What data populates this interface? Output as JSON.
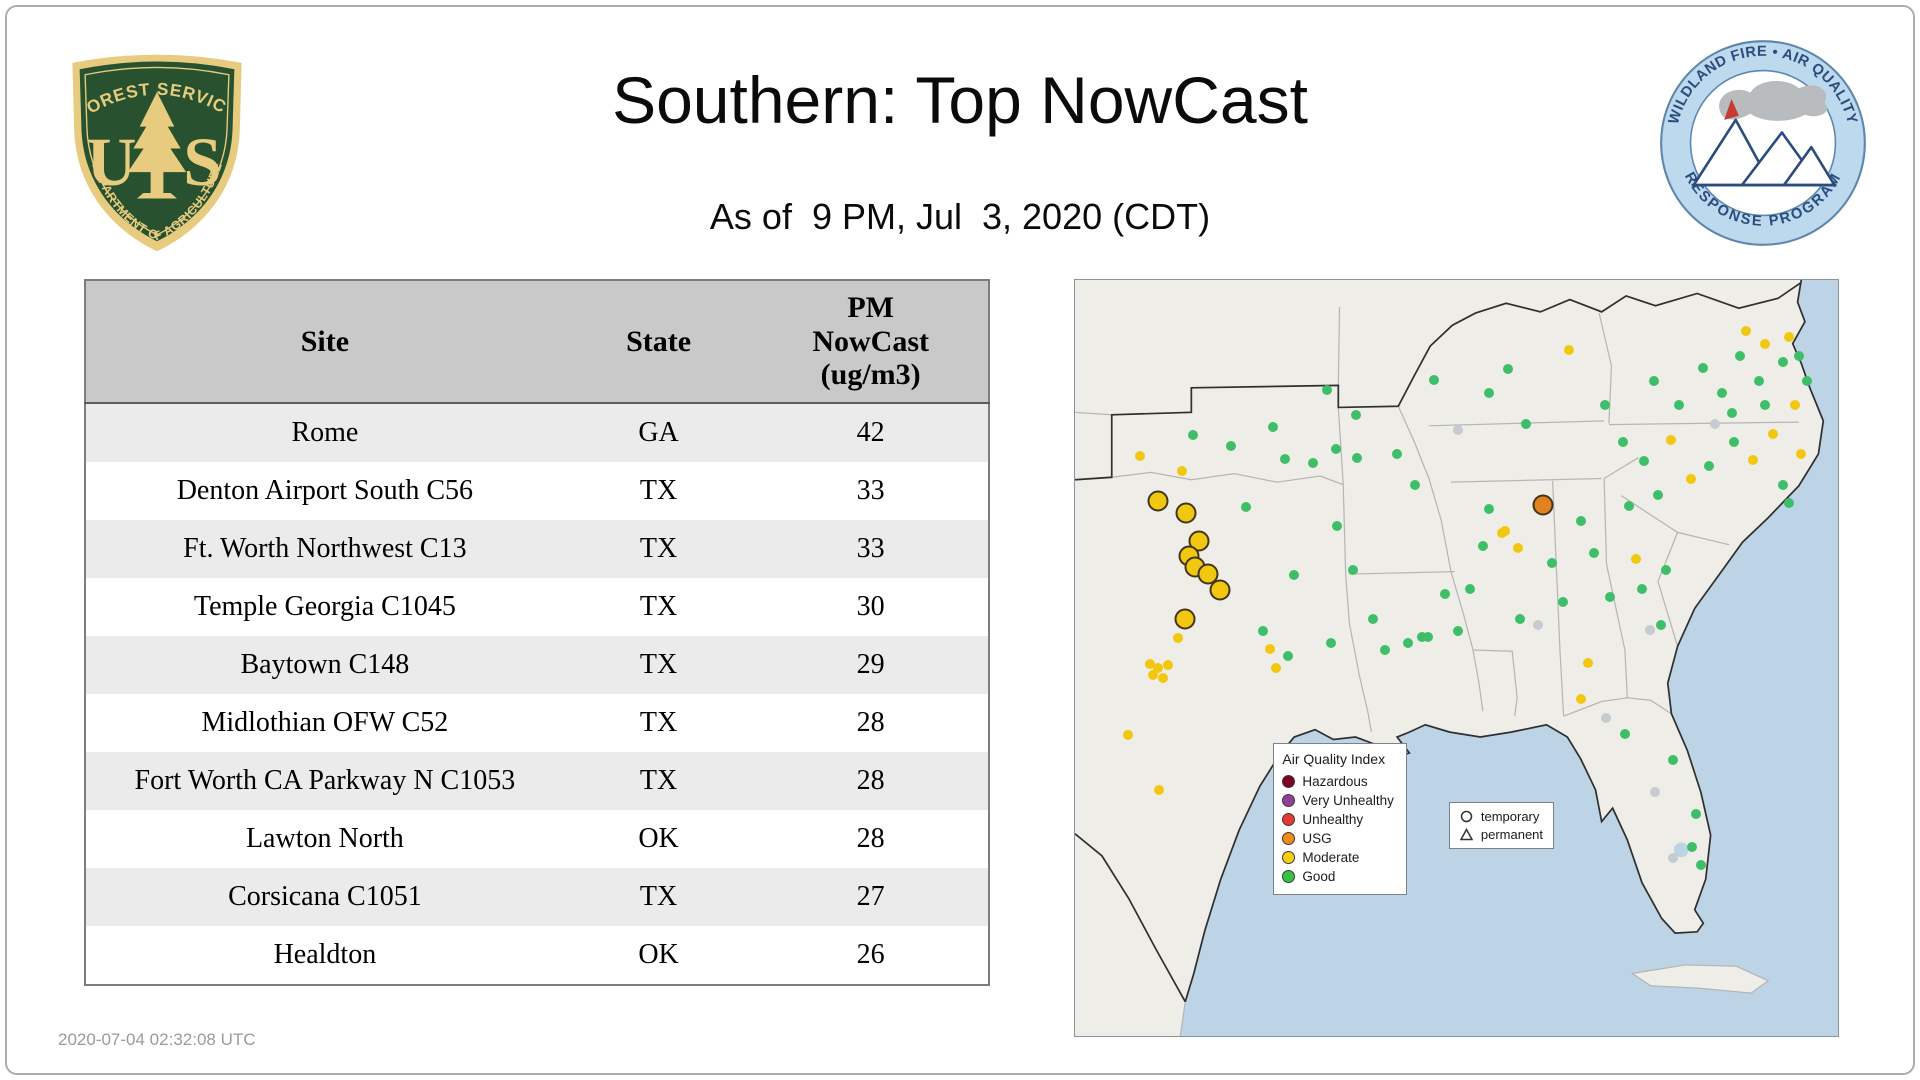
{
  "page": {
    "title": "Southern: Top NowCast",
    "subtitle": "As of  9 PM, Jul  3, 2020 (CDT)",
    "timestamp": "2020-07-04 02:32:08 UTC"
  },
  "logos": {
    "usfs": {
      "top_text": "FOREST SERVICE",
      "monogram_left": "U",
      "monogram_right": "S",
      "bottom_text": "DEPARTMENT OF AGRICULTURE",
      "body_color": "#27512f",
      "gold_color": "#e7cb7e"
    },
    "wfaqrp": {
      "top_text": "WILDLAND FIRE • AIR QUALITY",
      "bottom_text": "RESPONSE PROGRAM",
      "ring_color": "#bdd9ee",
      "text_color": "#2b4d7e",
      "flame_color": "#c43c35",
      "smoke_color": "#b9bcbf"
    }
  },
  "table": {
    "columns": [
      "Site",
      "State",
      "PM\nNowCast\n(ug/m3)"
    ],
    "rows": [
      {
        "site": "Rome",
        "state": "GA",
        "value": "42"
      },
      {
        "site": "Denton Airport South C56",
        "state": "TX",
        "value": "33"
      },
      {
        "site": "Ft. Worth Northwest C13",
        "state": "TX",
        "value": "33"
      },
      {
        "site": "Temple Georgia C1045",
        "state": "TX",
        "value": "30"
      },
      {
        "site": "Baytown C148",
        "state": "TX",
        "value": "29"
      },
      {
        "site": "Midlothian OFW C52",
        "state": "TX",
        "value": "28"
      },
      {
        "site": "Fort Worth CA Parkway N C1053",
        "state": "TX",
        "value": "28"
      },
      {
        "site": "Lawton North",
        "state": "OK",
        "value": "28"
      },
      {
        "site": "Corsicana C1051",
        "state": "TX",
        "value": "27"
      },
      {
        "site": "Healdton",
        "state": "OK",
        "value": "26"
      }
    ]
  },
  "map": {
    "colors": {
      "good": "#3fbe6a",
      "moderate": "#f2c70f",
      "usg": "#e0831f",
      "nodata": "#c6cbd2",
      "water": "#bdd3e6",
      "land": "#efede7"
    },
    "aqi_legend": {
      "title": "Air Quality Index",
      "items": [
        {
          "label": "Hazardous",
          "color": "#7e0023"
        },
        {
          "label": "Very Unhealthy",
          "color": "#8f3f97"
        },
        {
          "label": "Unhealthy",
          "color": "#e53935"
        },
        {
          "label": "USG",
          "color": "#ef8c1a"
        },
        {
          "label": "Moderate",
          "color": "#f6cf0e"
        },
        {
          "label": "Good",
          "color": "#35c440"
        }
      ]
    },
    "marker_legend": {
      "temporary_label": "temporary",
      "permanent_label": "permanent"
    },
    "monitor_fields": [
      "x_pct",
      "y_pct",
      "category",
      "size"
    ],
    "monitors": [
      [
        8.5,
        23.3,
        "moderate",
        "sm"
      ],
      [
        14.0,
        25.3,
        "moderate",
        "sm"
      ],
      [
        15.5,
        20.5,
        "good",
        "sm"
      ],
      [
        20.5,
        22.0,
        "good",
        "sm"
      ],
      [
        26.0,
        19.5,
        "good",
        "sm"
      ],
      [
        27.5,
        23.7,
        "good",
        "sm"
      ],
      [
        22.4,
        30.0,
        "good",
        "sm"
      ],
      [
        28.7,
        39.0,
        "good",
        "sm"
      ],
      [
        24.6,
        46.4,
        "good",
        "sm"
      ],
      [
        27.9,
        49.7,
        "good",
        "sm"
      ],
      [
        25.5,
        48.8,
        "moderate",
        "sm"
      ],
      [
        26.3,
        51.3,
        "moderate",
        "sm"
      ],
      [
        13.5,
        47.4,
        "moderate",
        "sm"
      ],
      [
        9.8,
        50.8,
        "moderate",
        "sm"
      ],
      [
        10.9,
        51.3,
        "moderate",
        "sm"
      ],
      [
        10.2,
        52.3,
        "moderate",
        "sm"
      ],
      [
        11.5,
        52.6,
        "moderate",
        "sm"
      ],
      [
        12.2,
        50.9,
        "moderate",
        "sm"
      ],
      [
        6.9,
        60.2,
        "moderate",
        "sm"
      ],
      [
        11.0,
        67.5,
        "moderate",
        "sm"
      ],
      [
        33.0,
        14.5,
        "good",
        "sm"
      ],
      [
        36.8,
        17.8,
        "good",
        "sm"
      ],
      [
        31.2,
        24.2,
        "good",
        "sm"
      ],
      [
        34.2,
        22.3,
        "good",
        "sm"
      ],
      [
        36.9,
        23.6,
        "good",
        "sm"
      ],
      [
        34.3,
        32.6,
        "good",
        "sm"
      ],
      [
        36.5,
        38.4,
        "good",
        "sm"
      ],
      [
        39.0,
        44.9,
        "good",
        "sm"
      ],
      [
        33.5,
        48.0,
        "good",
        "sm"
      ],
      [
        40.6,
        48.9,
        "good",
        "sm"
      ],
      [
        43.6,
        48.0,
        "good",
        "sm"
      ],
      [
        45.5,
        47.2,
        "good",
        "sm"
      ],
      [
        42.2,
        23.0,
        "good",
        "sm"
      ],
      [
        44.6,
        27.1,
        "good",
        "sm"
      ],
      [
        47.0,
        13.2,
        "good",
        "sm"
      ],
      [
        50.2,
        19.8,
        "nodata",
        "sm"
      ],
      [
        54.3,
        14.9,
        "good",
        "sm"
      ],
      [
        56.7,
        11.8,
        "good",
        "sm"
      ],
      [
        59.1,
        19.0,
        "good",
        "sm"
      ],
      [
        64.8,
        9.2,
        "moderate",
        "sm"
      ],
      [
        69.5,
        16.5,
        "good",
        "sm"
      ],
      [
        48.5,
        41.5,
        "good",
        "sm"
      ],
      [
        51.8,
        40.9,
        "good",
        "sm"
      ],
      [
        53.5,
        35.2,
        "good",
        "sm"
      ],
      [
        54.3,
        30.3,
        "good",
        "sm"
      ],
      [
        55.9,
        33.5,
        "moderate",
        "sm"
      ],
      [
        46.3,
        47.2,
        "good",
        "sm"
      ],
      [
        50.2,
        46.4,
        "good",
        "sm"
      ],
      [
        58.3,
        44.9,
        "good",
        "sm"
      ],
      [
        60.7,
        45.6,
        "nodata",
        "sm"
      ],
      [
        56.4,
        33.2,
        "moderate",
        "sm"
      ],
      [
        58.1,
        35.4,
        "moderate",
        "sm"
      ],
      [
        62.5,
        37.4,
        "good",
        "sm"
      ],
      [
        66.3,
        31.9,
        "good",
        "sm"
      ],
      [
        68.0,
        36.1,
        "good",
        "sm"
      ],
      [
        70.1,
        41.9,
        "good",
        "sm"
      ],
      [
        73.5,
        36.9,
        "moderate",
        "sm"
      ],
      [
        74.3,
        40.9,
        "good",
        "sm"
      ],
      [
        77.5,
        38.4,
        "good",
        "sm"
      ],
      [
        64.0,
        42.6,
        "good",
        "sm"
      ],
      [
        67.2,
        50.6,
        "moderate",
        "sm"
      ],
      [
        76.8,
        45.7,
        "good",
        "sm"
      ],
      [
        75.4,
        46.3,
        "nodata",
        "sm"
      ],
      [
        66.3,
        55.4,
        "moderate",
        "sm"
      ],
      [
        69.6,
        57.9,
        "nodata",
        "sm"
      ],
      [
        72.1,
        60.1,
        "good",
        "sm"
      ],
      [
        78.4,
        63.5,
        "good",
        "sm"
      ],
      [
        76.0,
        67.7,
        "nodata",
        "sm"
      ],
      [
        81.4,
        70.6,
        "good",
        "sm"
      ],
      [
        80.8,
        75.0,
        "good",
        "sm"
      ],
      [
        78.4,
        76.5,
        "nodata",
        "sm"
      ],
      [
        82.1,
        77.4,
        "good",
        "sm"
      ],
      [
        71.8,
        21.4,
        "good",
        "sm"
      ],
      [
        74.6,
        24.0,
        "good",
        "sm"
      ],
      [
        78.1,
        21.1,
        "moderate",
        "sm"
      ],
      [
        72.6,
        29.9,
        "good",
        "sm"
      ],
      [
        76.4,
        28.4,
        "good",
        "sm"
      ],
      [
        75.9,
        13.3,
        "good",
        "sm"
      ],
      [
        79.1,
        16.5,
        "good",
        "sm"
      ],
      [
        82.3,
        11.7,
        "good",
        "sm"
      ],
      [
        84.8,
        14.9,
        "good",
        "sm"
      ],
      [
        86.1,
        17.6,
        "good",
        "sm"
      ],
      [
        87.2,
        10.0,
        "good",
        "sm"
      ],
      [
        89.6,
        13.3,
        "good",
        "sm"
      ],
      [
        90.4,
        16.5,
        "good",
        "sm"
      ],
      [
        92.8,
        10.9,
        "good",
        "sm"
      ],
      [
        94.9,
        10.0,
        "good",
        "sm"
      ],
      [
        96.0,
        13.3,
        "good",
        "sm"
      ],
      [
        88.0,
        6.8,
        "moderate",
        "sm"
      ],
      [
        90.4,
        8.4,
        "moderate",
        "sm"
      ],
      [
        93.6,
        7.6,
        "moderate",
        "sm"
      ],
      [
        94.4,
        16.5,
        "moderate",
        "sm"
      ],
      [
        91.5,
        20.4,
        "moderate",
        "sm"
      ],
      [
        95.2,
        23.0,
        "moderate",
        "sm"
      ],
      [
        88.8,
        23.8,
        "moderate",
        "sm"
      ],
      [
        83.9,
        19.0,
        "nodata",
        "sm"
      ],
      [
        86.4,
        21.4,
        "good",
        "sm"
      ],
      [
        83.1,
        24.6,
        "good",
        "sm"
      ],
      [
        80.7,
        26.3,
        "moderate",
        "sm"
      ],
      [
        92.8,
        27.1,
        "good",
        "sm"
      ],
      [
        93.6,
        29.5,
        "good",
        "sm"
      ],
      [
        10.9,
        29.2,
        "moderate",
        "lg"
      ],
      [
        14.6,
        30.8,
        "moderate",
        "lg"
      ],
      [
        16.2,
        34.5,
        "moderate",
        "lg"
      ],
      [
        15.0,
        36.5,
        "moderate",
        "lg"
      ],
      [
        15.7,
        38.0,
        "moderate",
        "lg"
      ],
      [
        17.4,
        38.9,
        "moderate",
        "lg"
      ],
      [
        19.0,
        41.0,
        "moderate",
        "lg"
      ],
      [
        14.4,
        44.8,
        "moderate",
        "lg"
      ],
      [
        61.3,
        29.8,
        "usg",
        "lg"
      ]
    ]
  }
}
